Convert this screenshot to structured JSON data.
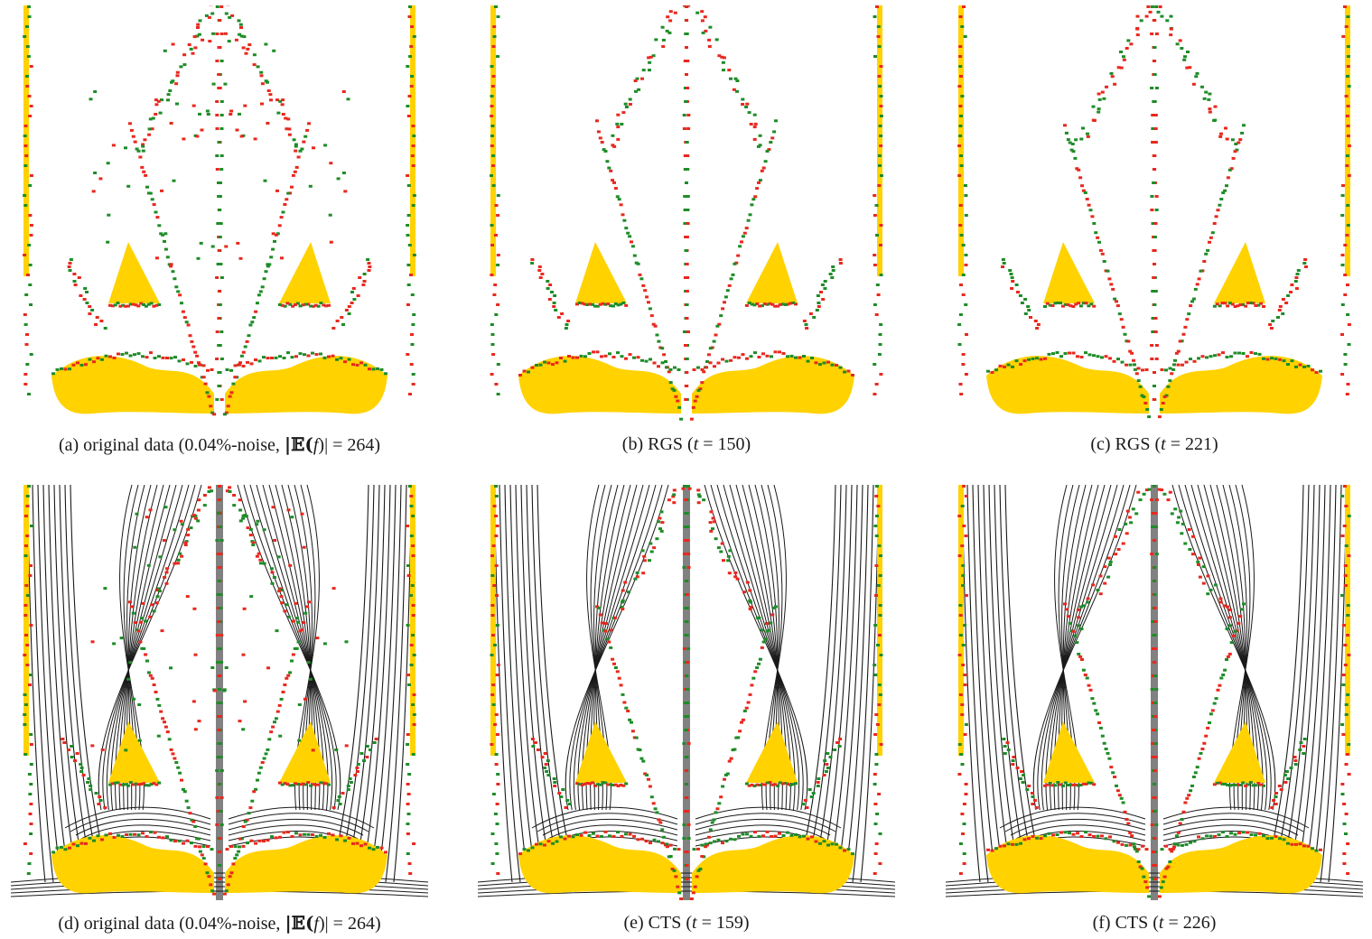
{
  "figure": {
    "panels": [
      {
        "id": "a",
        "tag": "(a)",
        "label": "original data (0.04%-noise, ",
        "metric_symbol": "|𝔼(",
        "metric_var": "f",
        "metric_close": ")| = ",
        "metric_value": "264",
        "suffix": ")",
        "has_contours": false
      },
      {
        "id": "b",
        "tag": "(b)",
        "label": "RGS (",
        "metric_var": "t",
        "metric_eq": " = ",
        "metric_value": "150",
        "suffix": ")",
        "has_contours": false
      },
      {
        "id": "c",
        "tag": "(c)",
        "label": "RGS (",
        "metric_var": "t",
        "metric_eq": " = ",
        "metric_value": "221",
        "suffix": ")",
        "has_contours": false
      },
      {
        "id": "d",
        "tag": "(d)",
        "label": "original data (0.04%-noise, ",
        "metric_symbol": "|𝔼(",
        "metric_var": "f",
        "metric_close": ")| = ",
        "metric_value": "264",
        "suffix": ")",
        "has_contours": true
      },
      {
        "id": "e",
        "tag": "(e)",
        "label": "CTS (",
        "metric_var": "t",
        "metric_eq": " = ",
        "metric_value": "159",
        "suffix": ")",
        "has_contours": true
      },
      {
        "id": "f",
        "tag": "(f)",
        "label": "CTS (",
        "metric_var": "t",
        "metric_eq": " = ",
        "metric_value": "226",
        "suffix": ")",
        "has_contours": true
      }
    ],
    "colors": {
      "fill": "#ffd200",
      "red_marks": "#e8281e",
      "green_marks": "#1e8c28",
      "contour": "#1a1a1a",
      "background": "#ffffff"
    }
  }
}
